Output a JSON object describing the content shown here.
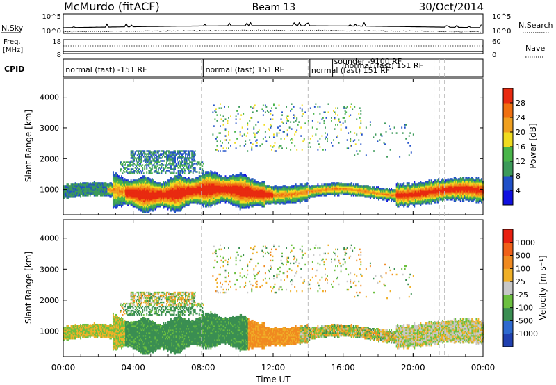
{
  "header": {
    "station": "McMurdo (fitACF)",
    "beam": "Beam 13",
    "date": "30/Oct/2014"
  },
  "top_panel": {
    "left_label_1": "N.Sky",
    "left_label_2": "Freq.",
    "left_label_3": "[MHz]",
    "left_label_4": "CPID",
    "right_label_1": "N.Search",
    "right_label_2": "Nave",
    "left_ticks_sky": [
      "10^5",
      "10^0"
    ],
    "right_ticks_search": [
      "10^5",
      "10^0"
    ],
    "left_ticks_freq": [
      "18",
      "8"
    ],
    "right_ticks_nave": [
      "60",
      "0"
    ]
  },
  "cpid_labels": [
    {
      "time_h": 0.05,
      "text": "normal (fast) -151 RF"
    },
    {
      "time_h": 8.05,
      "text": "normal (fast) 151 RF"
    },
    {
      "time_h": 14.1,
      "text": "normal (fast) 151 RF"
    },
    {
      "time_h": 15.4,
      "text": "sounder -9100 RF"
    },
    {
      "time_h": 16.0,
      "text": "normal (fast) 151 RF"
    }
  ],
  "mode_change_times_h": [
    7.9,
    14.0,
    21.2,
    21.5,
    21.8
  ],
  "chart_data": [
    {
      "type": "heatmap",
      "name": "Power",
      "ylabel": "Slant Range [km]",
      "xlabel": "Time UT",
      "xlim_h": [
        0,
        24
      ],
      "ylim": [
        180,
        4600
      ],
      "yticks": [
        1000,
        2000,
        3000,
        4000
      ],
      "colorbar_label": "Power [dB]",
      "colorbar_ticks": [
        "4",
        "8",
        "12",
        "16",
        "20",
        "24",
        "28"
      ],
      "colorbar_colors": [
        "#1010e0",
        "#2050c8",
        "#3c9a5a",
        "#49b54a",
        "#f0dc20",
        "#f0a020",
        "#f07010",
        "#e82a10"
      ]
    },
    {
      "type": "heatmap",
      "name": "Velocity",
      "ylabel": "Slant Range [km]",
      "xlabel": "Time UT",
      "xlim_h": [
        0,
        24
      ],
      "ylim": [
        180,
        4600
      ],
      "yticks": [
        1000,
        2000,
        3000,
        4000
      ],
      "xticks": [
        "00:00",
        "04:00",
        "08:00",
        "12:00",
        "16:00",
        "20:00",
        "00:00"
      ],
      "colorbar_label": "Velocity [m s⁻¹]",
      "colorbar_ticks": [
        "1000",
        "500",
        "100",
        "25",
        "-25",
        "-100",
        "-500",
        "-1000"
      ],
      "colorbar_colors": [
        "#2040b0",
        "#2e6ad0",
        "#3a8e52",
        "#6cc040",
        "#c8c8c8",
        "#f0b028",
        "#f08a20",
        "#f06018",
        "#e82010"
      ]
    }
  ]
}
